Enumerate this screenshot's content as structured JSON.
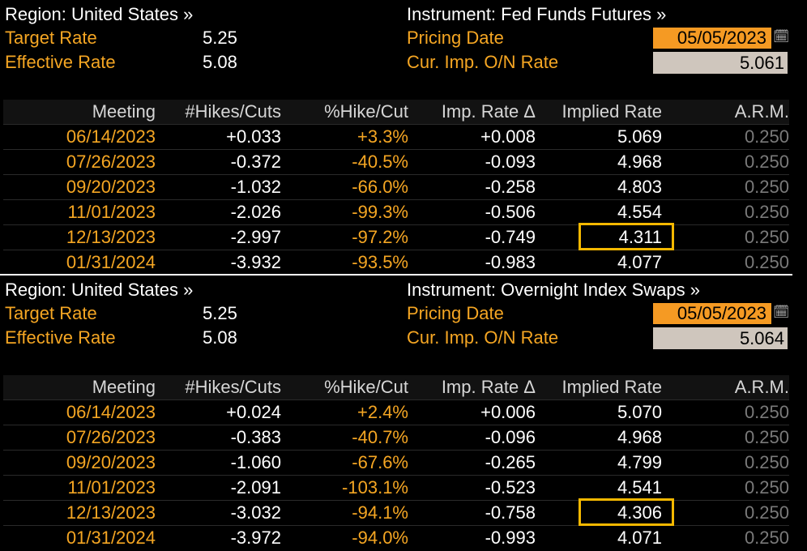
{
  "panels": [
    {
      "region_label": "Region: United States »",
      "instrument_label": "Instrument: Fed Funds Futures »",
      "target_rate_label": "Target Rate",
      "target_rate_value": "5.25",
      "effective_rate_label": "Effective Rate",
      "effective_rate_value": "5.08",
      "pricing_date_label": "Pricing Date",
      "pricing_date_value": "05/05/2023",
      "cur_imp_label": "Cur. Imp. O/N Rate",
      "cur_imp_value": "5.061",
      "columns": [
        "Meeting",
        "#Hikes/Cuts",
        "%Hike/Cut",
        "Imp. Rate Δ",
        "Implied Rate",
        "A.R.M."
      ],
      "rows": [
        {
          "meeting": "06/14/2023",
          "hikes": "+0.033",
          "pct": "+3.3%",
          "delta": "+0.008",
          "implied": "5.069",
          "arm": "0.250"
        },
        {
          "meeting": "07/26/2023",
          "hikes": "-0.372",
          "pct": "-40.5%",
          "delta": "-0.093",
          "implied": "4.968",
          "arm": "0.250"
        },
        {
          "meeting": "09/20/2023",
          "hikes": "-1.032",
          "pct": "-66.0%",
          "delta": "-0.258",
          "implied": "4.803",
          "arm": "0.250"
        },
        {
          "meeting": "11/01/2023",
          "hikes": "-2.026",
          "pct": "-99.3%",
          "delta": "-0.506",
          "implied": "4.554",
          "arm": "0.250"
        },
        {
          "meeting": "12/13/2023",
          "hikes": "-2.997",
          "pct": "-97.2%",
          "delta": "-0.749",
          "implied": "4.311",
          "arm": "0.250"
        },
        {
          "meeting": "01/31/2024",
          "hikes": "-3.932",
          "pct": "-93.5%",
          "delta": "-0.983",
          "implied": "4.077",
          "arm": "0.250"
        }
      ],
      "highlight_row": 4,
      "highlight_color": "#f5b800"
    },
    {
      "region_label": "Region: United States »",
      "instrument_label": "Instrument: Overnight Index Swaps »",
      "target_rate_label": "Target Rate",
      "target_rate_value": "5.25",
      "effective_rate_label": "Effective Rate",
      "effective_rate_value": "5.08",
      "pricing_date_label": "Pricing Date",
      "pricing_date_value": "05/05/2023",
      "cur_imp_label": "Cur. Imp. O/N Rate",
      "cur_imp_value": "5.064",
      "columns": [
        "Meeting",
        "#Hikes/Cuts",
        "%Hike/Cut",
        "Imp. Rate Δ",
        "Implied Rate",
        "A.R.M."
      ],
      "rows": [
        {
          "meeting": "06/14/2023",
          "hikes": "+0.024",
          "pct": "+2.4%",
          "delta": "+0.006",
          "implied": "5.070",
          "arm": "0.250"
        },
        {
          "meeting": "07/26/2023",
          "hikes": "-0.383",
          "pct": "-40.7%",
          "delta": "-0.096",
          "implied": "4.968",
          "arm": "0.250"
        },
        {
          "meeting": "09/20/2023",
          "hikes": "-1.060",
          "pct": "-67.6%",
          "delta": "-0.265",
          "implied": "4.799",
          "arm": "0.250"
        },
        {
          "meeting": "11/01/2023",
          "hikes": "-2.091",
          "pct": "-103.1%",
          "delta": "-0.523",
          "implied": "4.541",
          "arm": "0.250"
        },
        {
          "meeting": "12/13/2023",
          "hikes": "-3.032",
          "pct": "-94.1%",
          "delta": "-0.758",
          "implied": "4.306",
          "arm": "0.250"
        },
        {
          "meeting": "01/31/2024",
          "hikes": "-3.972",
          "pct": "-94.0%",
          "delta": "-0.993",
          "implied": "4.071",
          "arm": "0.250"
        }
      ],
      "highlight_row": 4,
      "highlight_color": "#f5b800"
    }
  ],
  "icons": {
    "calendar": "calendar-icon"
  },
  "colors": {
    "accent_orange": "#f5a623",
    "date_box": "#f59a23",
    "rate_box": "#cfc6bd",
    "arm_grey": "#7a7a7a"
  }
}
